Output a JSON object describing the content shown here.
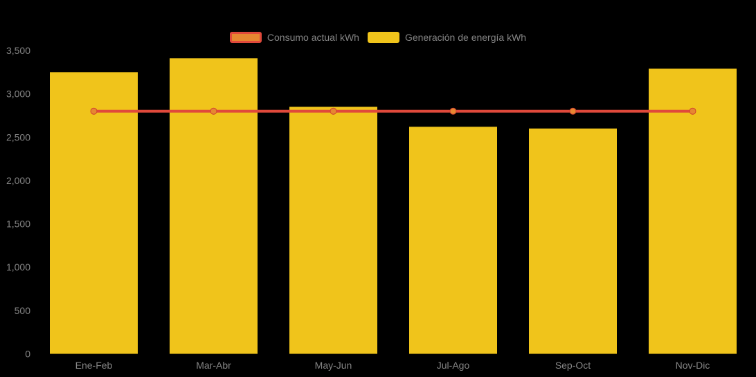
{
  "legend": {
    "items": [
      {
        "label": "Consumo actual kWh",
        "series_type": "line",
        "swatch_fill": "#E68731",
        "swatch_border": "#E0493B"
      },
      {
        "label": "Generación de energía kWh",
        "series_type": "bar",
        "swatch_fill": "#F0C41B",
        "swatch_border": null
      }
    ]
  },
  "chart_data": {
    "type": "combo",
    "categories": [
      "Ene-Feb",
      "Mar-Abr",
      "May-Jun",
      "Jul-Ago",
      "Sep-Oct",
      "Nov-Dic"
    ],
    "series": [
      {
        "name": "Consumo actual kWh",
        "type": "line",
        "color": "#E0493B",
        "marker_fill": "#E68731",
        "marker_stroke": "#D0402E",
        "values": [
          2800,
          2800,
          2800,
          2800,
          2800,
          2800
        ]
      },
      {
        "name": "Generación de energía kWh",
        "type": "bar",
        "color": "#F0C41B",
        "values": [
          3250,
          3410,
          2850,
          2620,
          2600,
          3290
        ]
      }
    ],
    "title": "",
    "xlabel": "",
    "ylabel": "",
    "ylim": [
      0,
      3500
    ],
    "yticks": [
      0,
      500,
      1000,
      1500,
      2000,
      2500,
      3000,
      3500
    ],
    "ytick_labels": [
      "0",
      "500",
      "1,000",
      "1,500",
      "2,000",
      "2,500",
      "3,000",
      "3,500"
    ],
    "grid": false,
    "legend_position": "top-center",
    "background": "#000000"
  },
  "colors": {
    "background": "#000000",
    "axis_text": "#858585"
  }
}
